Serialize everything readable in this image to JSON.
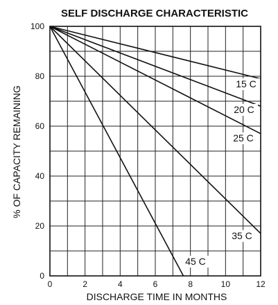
{
  "chart_data": {
    "type": "line",
    "title": "SELF DISCHARGE CHARACTERISTIC",
    "xlabel": "DISCHARGE TIME IN MONTHS",
    "ylabel": "% OF CAPACITY REMAINING",
    "xlim": [
      0,
      12
    ],
    "ylim": [
      0,
      100
    ],
    "xticks": [
      0,
      2,
      4,
      6,
      8,
      10,
      12
    ],
    "yticks": [
      0,
      20,
      40,
      60,
      80,
      100
    ],
    "grid": true,
    "legend": "none (series labeled inline)",
    "series": [
      {
        "name": "15 C",
        "x": [
          0,
          12
        ],
        "y": [
          100,
          79
        ]
      },
      {
        "name": "20 C",
        "x": [
          0,
          12
        ],
        "y": [
          100,
          68
        ]
      },
      {
        "name": "25 C",
        "x": [
          0,
          12
        ],
        "y": [
          100,
          57
        ]
      },
      {
        "name": "35 C",
        "x": [
          0,
          12
        ],
        "y": [
          100,
          17
        ]
      },
      {
        "name": "45 C",
        "x": [
          0,
          7.6
        ],
        "y": [
          100,
          0
        ]
      }
    ]
  }
}
